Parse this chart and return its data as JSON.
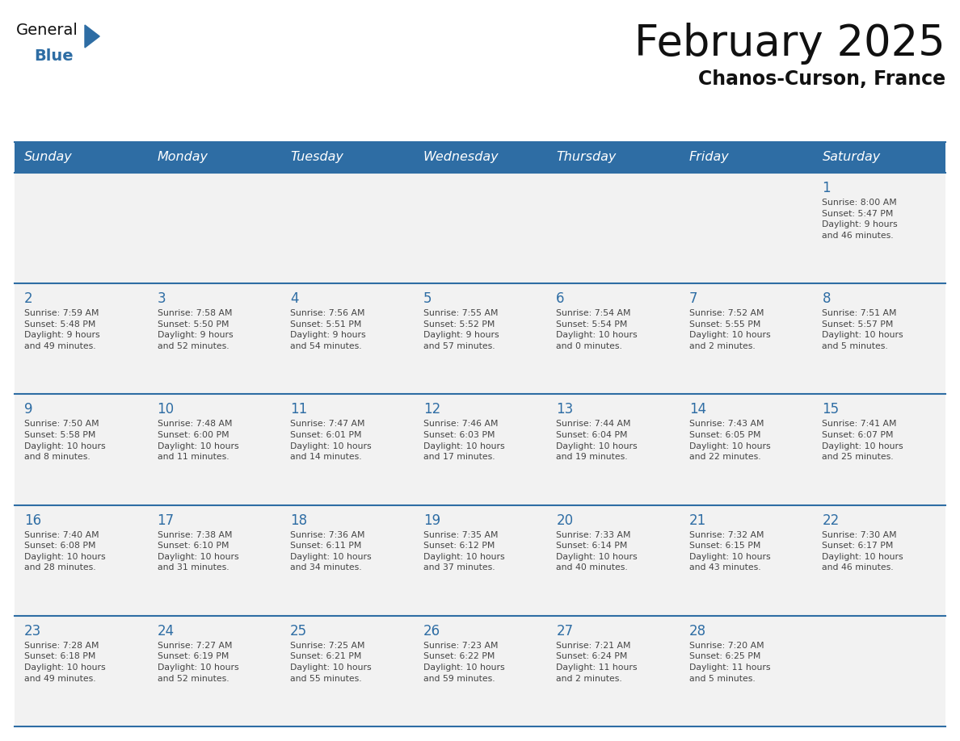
{
  "title": "February 2025",
  "subtitle": "Chanos-Curson, France",
  "header_color": "#2e6da4",
  "header_text_color": "#ffffff",
  "cell_bg": "#f2f2f2",
  "day_number_color": "#2e6da4",
  "weekdays": [
    "Sunday",
    "Monday",
    "Tuesday",
    "Wednesday",
    "Thursday",
    "Friday",
    "Saturday"
  ],
  "days": [
    {
      "day": 1,
      "col": 6,
      "row": 0,
      "sunrise": "8:00 AM",
      "sunset": "5:47 PM",
      "daylight": "9 hours\nand 46 minutes."
    },
    {
      "day": 2,
      "col": 0,
      "row": 1,
      "sunrise": "7:59 AM",
      "sunset": "5:48 PM",
      "daylight": "9 hours\nand 49 minutes."
    },
    {
      "day": 3,
      "col": 1,
      "row": 1,
      "sunrise": "7:58 AM",
      "sunset": "5:50 PM",
      "daylight": "9 hours\nand 52 minutes."
    },
    {
      "day": 4,
      "col": 2,
      "row": 1,
      "sunrise": "7:56 AM",
      "sunset": "5:51 PM",
      "daylight": "9 hours\nand 54 minutes."
    },
    {
      "day": 5,
      "col": 3,
      "row": 1,
      "sunrise": "7:55 AM",
      "sunset": "5:52 PM",
      "daylight": "9 hours\nand 57 minutes."
    },
    {
      "day": 6,
      "col": 4,
      "row": 1,
      "sunrise": "7:54 AM",
      "sunset": "5:54 PM",
      "daylight": "10 hours\nand 0 minutes."
    },
    {
      "day": 7,
      "col": 5,
      "row": 1,
      "sunrise": "7:52 AM",
      "sunset": "5:55 PM",
      "daylight": "10 hours\nand 2 minutes."
    },
    {
      "day": 8,
      "col": 6,
      "row": 1,
      "sunrise": "7:51 AM",
      "sunset": "5:57 PM",
      "daylight": "10 hours\nand 5 minutes."
    },
    {
      "day": 9,
      "col": 0,
      "row": 2,
      "sunrise": "7:50 AM",
      "sunset": "5:58 PM",
      "daylight": "10 hours\nand 8 minutes."
    },
    {
      "day": 10,
      "col": 1,
      "row": 2,
      "sunrise": "7:48 AM",
      "sunset": "6:00 PM",
      "daylight": "10 hours\nand 11 minutes."
    },
    {
      "day": 11,
      "col": 2,
      "row": 2,
      "sunrise": "7:47 AM",
      "sunset": "6:01 PM",
      "daylight": "10 hours\nand 14 minutes."
    },
    {
      "day": 12,
      "col": 3,
      "row": 2,
      "sunrise": "7:46 AM",
      "sunset": "6:03 PM",
      "daylight": "10 hours\nand 17 minutes."
    },
    {
      "day": 13,
      "col": 4,
      "row": 2,
      "sunrise": "7:44 AM",
      "sunset": "6:04 PM",
      "daylight": "10 hours\nand 19 minutes."
    },
    {
      "day": 14,
      "col": 5,
      "row": 2,
      "sunrise": "7:43 AM",
      "sunset": "6:05 PM",
      "daylight": "10 hours\nand 22 minutes."
    },
    {
      "day": 15,
      "col": 6,
      "row": 2,
      "sunrise": "7:41 AM",
      "sunset": "6:07 PM",
      "daylight": "10 hours\nand 25 minutes."
    },
    {
      "day": 16,
      "col": 0,
      "row": 3,
      "sunrise": "7:40 AM",
      "sunset": "6:08 PM",
      "daylight": "10 hours\nand 28 minutes."
    },
    {
      "day": 17,
      "col": 1,
      "row": 3,
      "sunrise": "7:38 AM",
      "sunset": "6:10 PM",
      "daylight": "10 hours\nand 31 minutes."
    },
    {
      "day": 18,
      "col": 2,
      "row": 3,
      "sunrise": "7:36 AM",
      "sunset": "6:11 PM",
      "daylight": "10 hours\nand 34 minutes."
    },
    {
      "day": 19,
      "col": 3,
      "row": 3,
      "sunrise": "7:35 AM",
      "sunset": "6:12 PM",
      "daylight": "10 hours\nand 37 minutes."
    },
    {
      "day": 20,
      "col": 4,
      "row": 3,
      "sunrise": "7:33 AM",
      "sunset": "6:14 PM",
      "daylight": "10 hours\nand 40 minutes."
    },
    {
      "day": 21,
      "col": 5,
      "row": 3,
      "sunrise": "7:32 AM",
      "sunset": "6:15 PM",
      "daylight": "10 hours\nand 43 minutes."
    },
    {
      "day": 22,
      "col": 6,
      "row": 3,
      "sunrise": "7:30 AM",
      "sunset": "6:17 PM",
      "daylight": "10 hours\nand 46 minutes."
    },
    {
      "day": 23,
      "col": 0,
      "row": 4,
      "sunrise": "7:28 AM",
      "sunset": "6:18 PM",
      "daylight": "10 hours\nand 49 minutes."
    },
    {
      "day": 24,
      "col": 1,
      "row": 4,
      "sunrise": "7:27 AM",
      "sunset": "6:19 PM",
      "daylight": "10 hours\nand 52 minutes."
    },
    {
      "day": 25,
      "col": 2,
      "row": 4,
      "sunrise": "7:25 AM",
      "sunset": "6:21 PM",
      "daylight": "10 hours\nand 55 minutes."
    },
    {
      "day": 26,
      "col": 3,
      "row": 4,
      "sunrise": "7:23 AM",
      "sunset": "6:22 PM",
      "daylight": "10 hours\nand 59 minutes."
    },
    {
      "day": 27,
      "col": 4,
      "row": 4,
      "sunrise": "7:21 AM",
      "sunset": "6:24 PM",
      "daylight": "11 hours\nand 2 minutes."
    },
    {
      "day": 28,
      "col": 5,
      "row": 4,
      "sunrise": "7:20 AM",
      "sunset": "6:25 PM",
      "daylight": "11 hours\nand 5 minutes."
    }
  ],
  "num_rows": 5,
  "num_cols": 7
}
